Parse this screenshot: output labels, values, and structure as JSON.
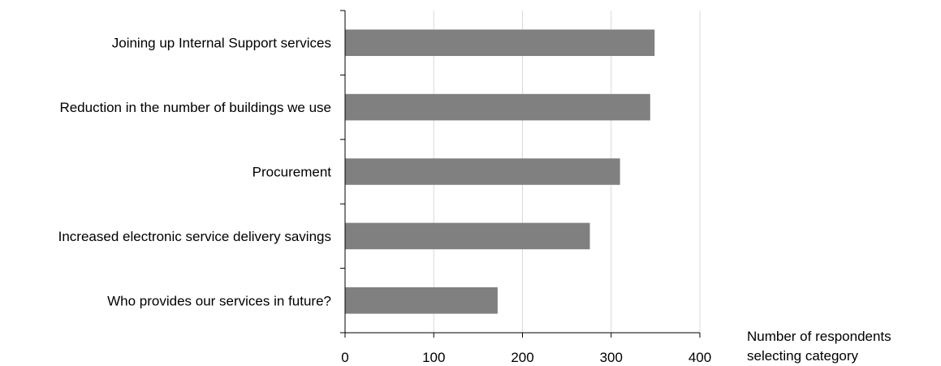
{
  "chart_data": {
    "type": "bar",
    "orientation": "horizontal",
    "categories": [
      "Joining up Internal Support services",
      "Reduction in the number of buildings we use",
      "Procurement",
      "Increased electronic service delivery savings",
      "Who provides our services in future?"
    ],
    "values": [
      349,
      344,
      310,
      276,
      172
    ],
    "xlabel": [
      "Number of respondents",
      "selecting category"
    ],
    "xlim": [
      0,
      400
    ],
    "xticks": [
      0,
      100,
      200,
      300,
      400
    ],
    "grid": true,
    "bar_color": "#808080",
    "grid_color": "#d9d9d9"
  }
}
